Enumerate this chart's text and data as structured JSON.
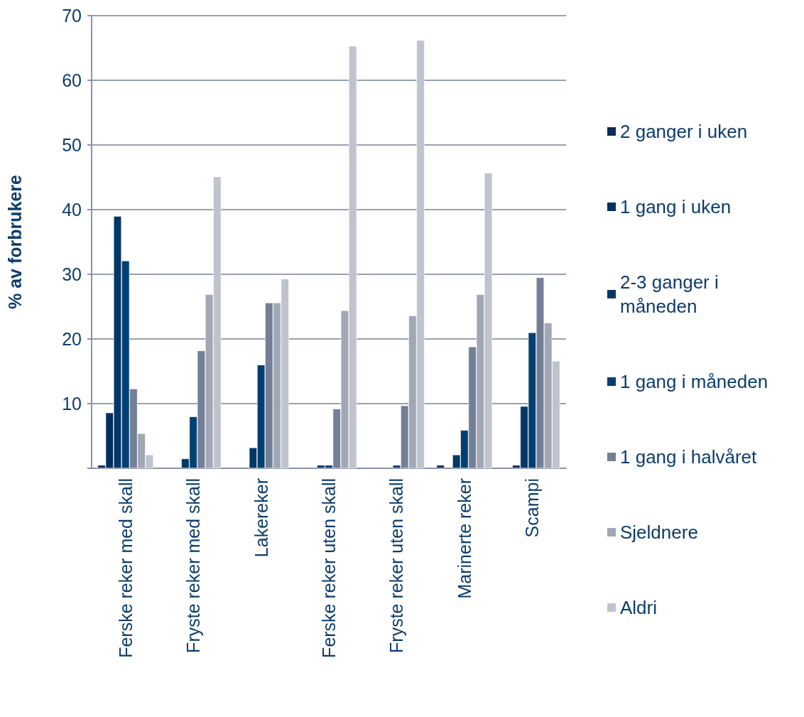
{
  "chart_data": {
    "type": "bar",
    "ylabel": "% av forbrukere",
    "categories": [
      "Ferske reker med skall",
      "Fryste reker med skall",
      "Lakereker",
      "Ferske reker uten skall",
      "Fryste reker uten skall",
      "Marinerte reker",
      "Scampi"
    ],
    "series": [
      {
        "name": "2 ganger i uken",
        "color": "#0a2c56",
        "values": [
          0.5,
          null,
          null,
          null,
          null,
          0.5,
          null
        ]
      },
      {
        "name": "1 gang i uken",
        "color": "#03305e",
        "values": [
          8.6,
          null,
          null,
          null,
          null,
          null,
          0.5
        ]
      },
      {
        "name": "2-3 ganger i måneden",
        "color": "#023766",
        "values": [
          39,
          1.5,
          3.2,
          0.5,
          null,
          2.1,
          9.6
        ]
      },
      {
        "name": "1 gang i måneden",
        "color": "#003f72",
        "values": [
          32.1,
          8,
          16,
          0.5,
          0.5,
          5.9,
          21
        ]
      },
      {
        "name": "1 gang i halvåret",
        "color": "#737f96",
        "values": [
          12.3,
          18.2,
          25.6,
          9.2,
          9.7,
          18.8,
          29.5
        ]
      },
      {
        "name": "Sjeldnere",
        "color": "#a2a7b6",
        "values": [
          5.4,
          26.9,
          25.6,
          24.4,
          23.6,
          26.9,
          22.5
        ]
      },
      {
        "name": "Aldri",
        "color": "#bfc3cd",
        "values": [
          2.1,
          45.1,
          29.3,
          65.3,
          66.2,
          45.7,
          16.6
        ]
      }
    ],
    "ylim": [
      0,
      70
    ],
    "yticks": [
      {
        "value": 0,
        "label": null
      },
      10,
      20,
      30,
      40,
      50,
      60,
      70
    ],
    "grid": "y",
    "legend": "right"
  }
}
